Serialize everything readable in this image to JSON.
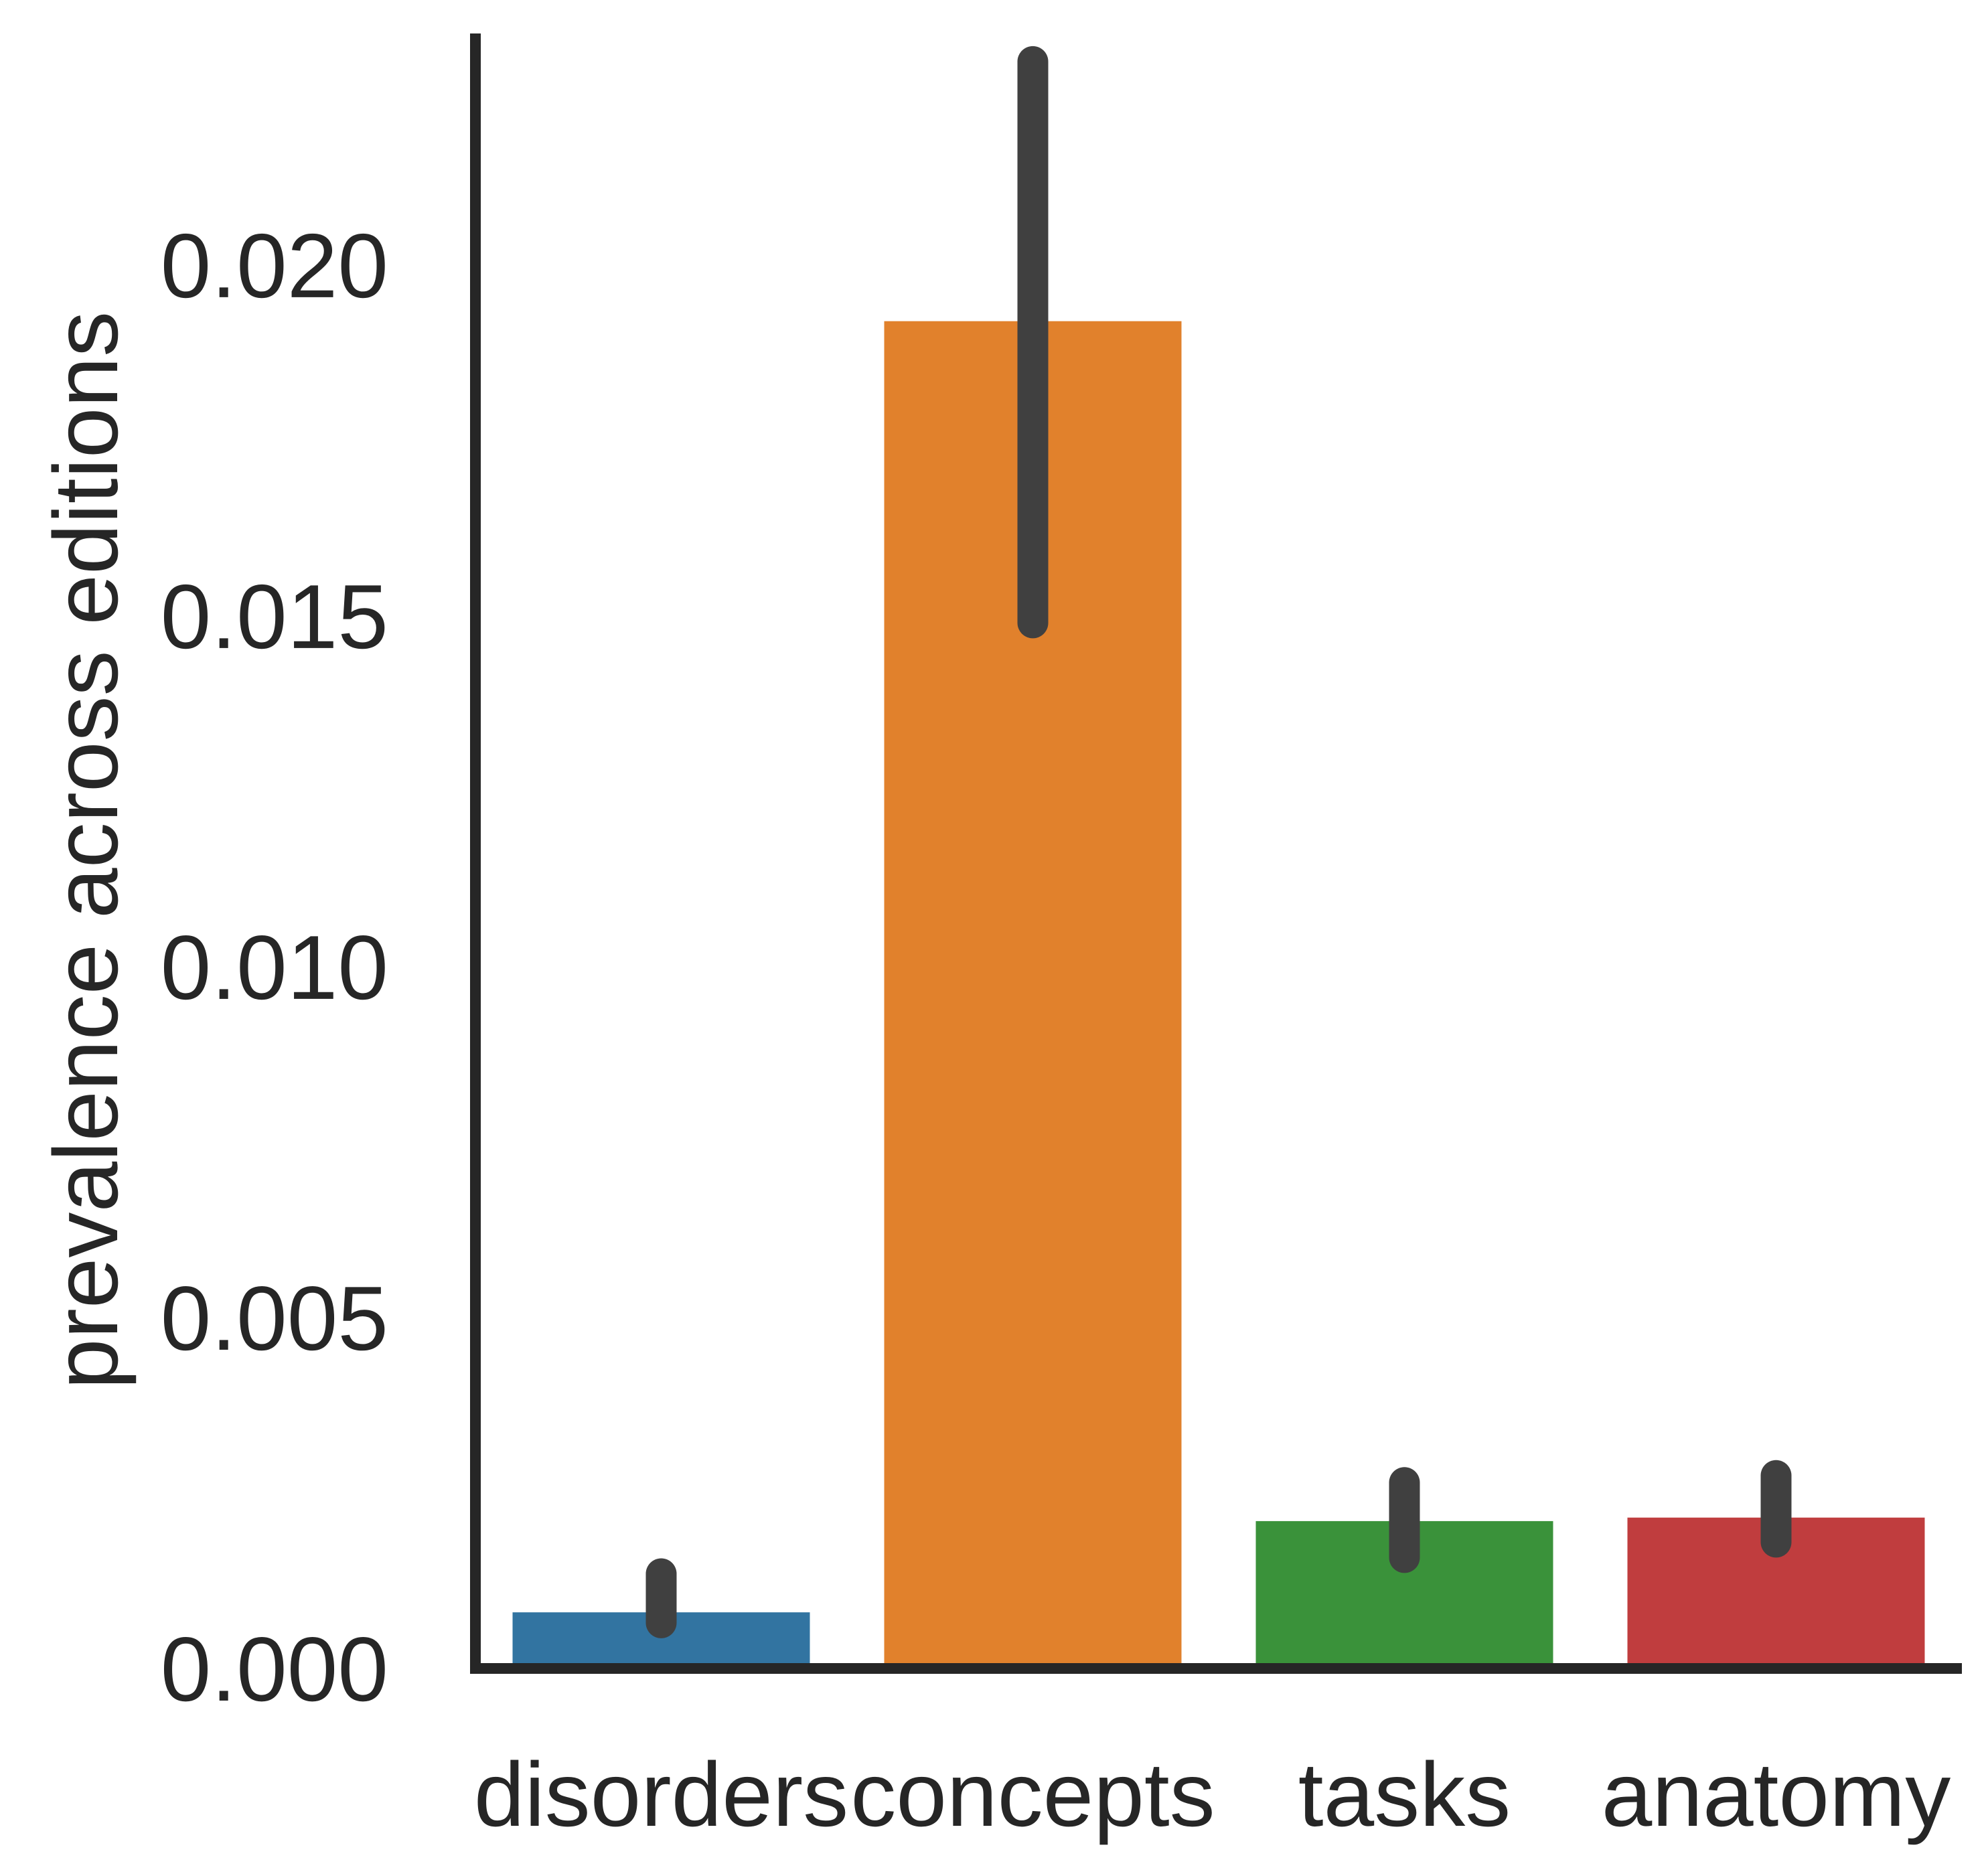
{
  "chart_data": {
    "type": "bar",
    "ylabel": "prevalence across editions",
    "xlabel": "",
    "title": "",
    "categories": [
      "disorders",
      "concepts",
      "tasks",
      "anatomy"
    ],
    "values": [
      0.0008,
      0.0192,
      0.0021,
      0.00215
    ],
    "error_low": [
      0.00065,
      0.0149,
      0.00158,
      0.0018
    ],
    "error_high": [
      0.00135,
      0.0229,
      0.00265,
      0.00275
    ],
    "colors": [
      "#3274a1",
      "#e1812c",
      "#3a923a",
      "#c03d3e"
    ],
    "error_color": "#404040",
    "axis_color": "#262626",
    "ylim": [
      0,
      0.0233
    ],
    "yticks": [
      0.0,
      0.005,
      0.01,
      0.015,
      0.02
    ],
    "ytick_labels": [
      "0.000",
      "0.005",
      "0.010",
      "0.015",
      "0.020"
    ],
    "grid": false,
    "legend": "none"
  }
}
